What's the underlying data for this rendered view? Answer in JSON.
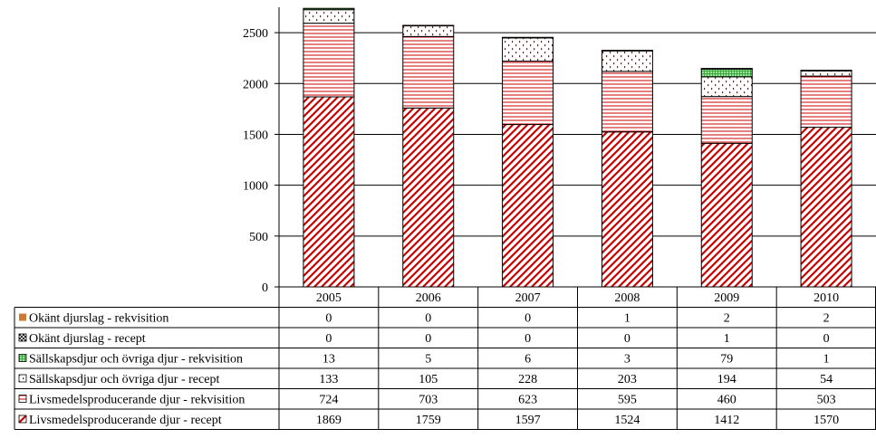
{
  "chart_data": {
    "type": "bar",
    "stacked": true,
    "title": "",
    "xlabel": "",
    "ylabel": "",
    "ylim": [
      0,
      2750
    ],
    "yticks": [
      0,
      500,
      1000,
      1500,
      2000,
      2500
    ],
    "grid": "horizontal",
    "legend": "data-table-left",
    "categories": [
      "2005",
      "2006",
      "2007",
      "2008",
      "2009",
      "2010"
    ],
    "series": [
      {
        "name": "Livsmedelsproducerande djur - recept",
        "values": [
          1869,
          1759,
          1597,
          1524,
          1412,
          1570
        ],
        "color": "#cc0000",
        "pattern": "diagonal"
      },
      {
        "name": "Livsmedelsproducerande djur - rekvisition",
        "values": [
          724,
          703,
          623,
          595,
          460,
          503
        ],
        "color": "#cc0000",
        "pattern": "horizontal"
      },
      {
        "name": "Sällskapsdjur och övriga djur - recept",
        "values": [
          133,
          105,
          228,
          203,
          194,
          54
        ],
        "color": "#cc0000",
        "pattern": "dots"
      },
      {
        "name": "Sällskapsdjur och övriga djur - rekvisition",
        "values": [
          13,
          5,
          6,
          3,
          79,
          1
        ],
        "color": "#33aa33",
        "pattern": "grid"
      },
      {
        "name": "Okänt djurslag - recept",
        "values": [
          0,
          0,
          0,
          0,
          1,
          0
        ],
        "color": "#000000",
        "pattern": "cross"
      },
      {
        "name": "Okänt djurslag - rekvisition",
        "values": [
          0,
          0,
          0,
          1,
          2,
          2
        ],
        "color": "#cc7a33",
        "pattern": "solid"
      }
    ]
  }
}
